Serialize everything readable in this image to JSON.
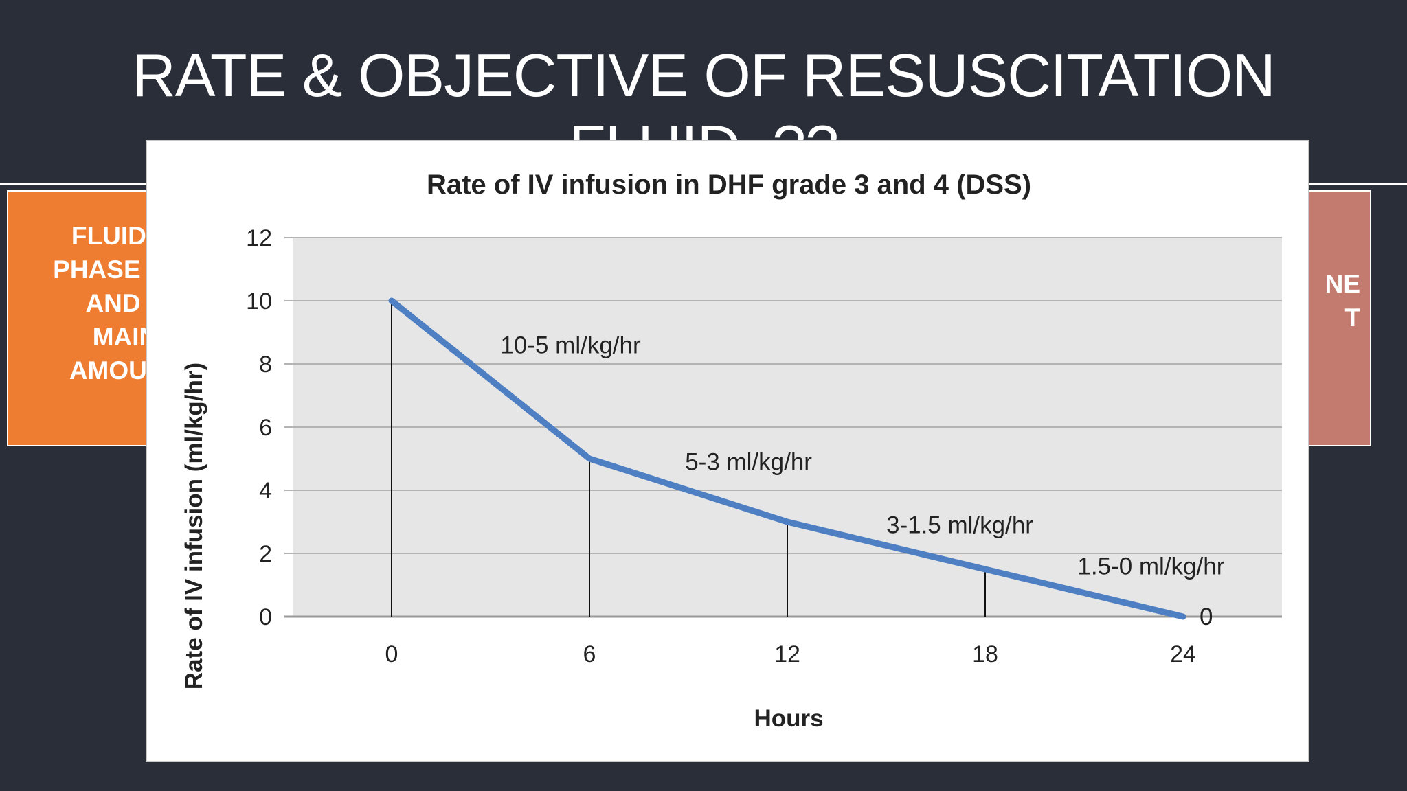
{
  "slide": {
    "title": "RATE & OBJECTIVE OF RESUSCITATION FLUID..??",
    "left_box_text": "FLUID IN\nPHASE IS C\nAND S\nMAIN\nAMOUNT",
    "right_box_text": "NE\nT",
    "colors": {
      "background": "#2a2e38",
      "left_box": "#ee7d31",
      "right_box": "#c47b6f",
      "line": "#4f7fc3"
    }
  },
  "chart_data": {
    "type": "line",
    "title": "Rate of IV infusion in DHF grade 3 and 4 (DSS)",
    "xlabel": "Hours",
    "ylabel": "Rate of IV infusion (ml/kg/hr)",
    "x": [
      0,
      6,
      12,
      18,
      24
    ],
    "xticks": [
      "0",
      "6",
      "12",
      "18",
      "24"
    ],
    "yticks": [
      "0",
      "2",
      "4",
      "6",
      "8",
      "10",
      "12"
    ],
    "xlim": [
      -3,
      27
    ],
    "ylim": [
      0,
      12
    ],
    "grid": true,
    "series": [
      {
        "name": "Rate of IV infusion",
        "values": [
          10,
          5,
          3,
          1.5,
          0
        ]
      }
    ],
    "annotations": [
      {
        "text": "10-5 ml/kg/hr",
        "x": 3.3,
        "y": 8.6
      },
      {
        "text": "5-3 ml/kg/hr",
        "x": 8.9,
        "y": 4.9
      },
      {
        "text": "3-1.5 ml/kg/hr",
        "x": 15.0,
        "y": 2.9
      },
      {
        "text": "1.5-0 ml/kg/hr",
        "x": 20.8,
        "y": 1.6
      },
      {
        "text": "0",
        "x": 24.5,
        "y": 0
      }
    ]
  }
}
